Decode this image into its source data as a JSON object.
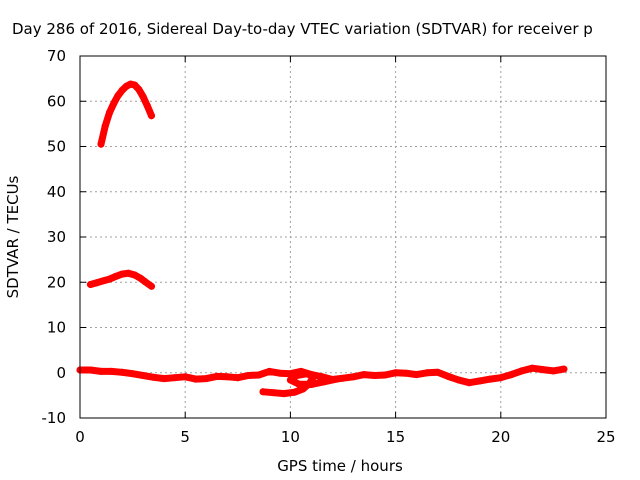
{
  "chart_data": {
    "type": "scatter",
    "title": "Day 286 of 2016, Sidereal Day-to-day VTEC variation (SDTVAR) for receiver p",
    "xlabel": "GPS time / hours",
    "ylabel": "SDTVAR / TECUs",
    "xlim": [
      0,
      25
    ],
    "ylim": [
      -10,
      70
    ],
    "xticks": [
      "0",
      "5",
      "10",
      "15",
      "20",
      "25"
    ],
    "yticks": [
      "-10",
      "0",
      "10",
      "20",
      "30",
      "40",
      "50",
      "60",
      "70"
    ],
    "grid": true,
    "legend": "none",
    "series_color": "#ff0000",
    "series": [
      {
        "points": [
          [
            1.0,
            50.5
          ],
          [
            1.2,
            54.5
          ],
          [
            1.4,
            57.5
          ],
          [
            1.6,
            59.5
          ],
          [
            1.8,
            61.2
          ],
          [
            2.0,
            62.4
          ],
          [
            2.2,
            63.3
          ],
          [
            2.4,
            63.8
          ],
          [
            2.6,
            63.6
          ],
          [
            2.8,
            62.6
          ],
          [
            3.0,
            61.0
          ],
          [
            3.2,
            59.0
          ],
          [
            3.4,
            56.8
          ]
        ]
      },
      {
        "points": [
          [
            0.5,
            19.5
          ],
          [
            0.8,
            19.9
          ],
          [
            1.1,
            20.3
          ],
          [
            1.4,
            20.7
          ],
          [
            1.7,
            21.3
          ],
          [
            2.0,
            21.8
          ],
          [
            2.3,
            22.0
          ],
          [
            2.6,
            21.6
          ],
          [
            2.9,
            20.8
          ],
          [
            3.1,
            20.1
          ],
          [
            3.4,
            19.1
          ]
        ]
      },
      {
        "points": [
          [
            0.0,
            0.6
          ],
          [
            0.5,
            0.6
          ],
          [
            1.0,
            0.3
          ],
          [
            1.5,
            0.3
          ],
          [
            2.0,
            0.1
          ],
          [
            2.5,
            -0.2
          ],
          [
            3.0,
            -0.6
          ],
          [
            3.5,
            -1.0
          ],
          [
            4.0,
            -1.3
          ],
          [
            4.5,
            -1.1
          ],
          [
            5.0,
            -0.9
          ],
          [
            5.5,
            -1.4
          ],
          [
            6.0,
            -1.3
          ],
          [
            6.5,
            -0.8
          ],
          [
            7.0,
            -0.9
          ],
          [
            7.5,
            -1.1
          ],
          [
            8.0,
            -0.6
          ],
          [
            8.5,
            -0.5
          ],
          [
            9.0,
            0.3
          ],
          [
            9.5,
            -0.1
          ],
          [
            10.0,
            -0.2
          ],
          [
            10.5,
            0.3
          ],
          [
            11.0,
            -0.4
          ],
          [
            11.5,
            -0.9
          ],
          [
            12.0,
            -1.5
          ],
          [
            12.5,
            -1.2
          ],
          [
            13.0,
            -0.9
          ],
          [
            13.5,
            -0.4
          ],
          [
            14.0,
            -0.6
          ],
          [
            14.5,
            -0.5
          ],
          [
            15.0,
            0.0
          ],
          [
            15.5,
            -0.1
          ],
          [
            16.0,
            -0.4
          ],
          [
            16.5,
            0.0
          ],
          [
            17.0,
            0.1
          ],
          [
            17.5,
            -0.8
          ],
          [
            18.0,
            -1.6
          ],
          [
            18.5,
            -2.2
          ],
          [
            19.0,
            -1.8
          ],
          [
            19.5,
            -1.4
          ],
          [
            20.0,
            -1.1
          ],
          [
            20.5,
            -0.4
          ],
          [
            21.0,
            0.4
          ],
          [
            21.5,
            1.0
          ],
          [
            22.0,
            0.7
          ],
          [
            22.5,
            0.4
          ],
          [
            23.0,
            0.8
          ]
        ]
      },
      {
        "points": [
          [
            8.7,
            -4.2
          ],
          [
            9.2,
            -4.4
          ],
          [
            9.7,
            -4.6
          ],
          [
            10.2,
            -4.3
          ],
          [
            10.6,
            -3.6
          ],
          [
            10.9,
            -2.4
          ],
          [
            11.1,
            -0.9
          ],
          [
            10.8,
            -0.2
          ],
          [
            10.3,
            -0.6
          ],
          [
            10.0,
            -1.6
          ],
          [
            10.4,
            -2.5
          ],
          [
            11.0,
            -2.6
          ],
          [
            11.6,
            -2.0
          ],
          [
            12.2,
            -1.4
          ]
        ]
      }
    ]
  }
}
